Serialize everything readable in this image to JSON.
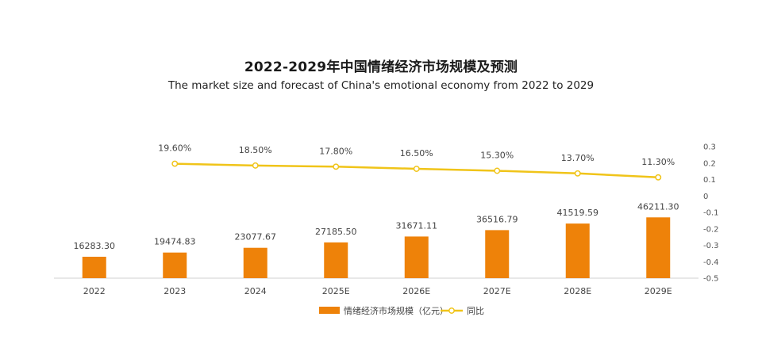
{
  "chart_data": {
    "type": "bar",
    "title": "2022-2029年中国情绪经济市场规模及预测",
    "subtitle": "The market size and forecast of China's emotional economy from 2022 to 2029",
    "categories": [
      "2022",
      "2023",
      "2024",
      "2025E",
      "2026E",
      "2027E",
      "2028E",
      "2029E"
    ],
    "series": [
      {
        "name": "情绪经济市场规模（亿元）",
        "type": "bar",
        "axis": "left",
        "values": [
          16283.3,
          19474.83,
          23077.67,
          27185.5,
          31671.11,
          36516.79,
          41519.59,
          46211.3
        ],
        "labels": [
          "16283.30",
          "19474.83",
          "23077.67",
          "27185.50",
          "31671.11",
          "36516.79",
          "41519.59",
          "46211.30"
        ]
      },
      {
        "name": "同比",
        "type": "line",
        "axis": "right",
        "values": [
          null,
          0.196,
          0.185,
          0.178,
          0.165,
          0.153,
          0.137,
          0.113
        ],
        "labels": [
          "",
          "19.60%",
          "18.50%",
          "17.80%",
          "16.50%",
          "15.30%",
          "13.70%",
          "11.30%"
        ]
      }
    ],
    "y_left": {
      "visible": false,
      "range": [
        0,
        100000
      ]
    },
    "y_right": {
      "range": [
        -0.5,
        0.3
      ],
      "ticks": [
        "0.3",
        "0.2",
        "0.1",
        "0",
        "-0.1",
        "-0.2",
        "-0.3",
        "-0.4",
        "-0.5"
      ],
      "tick_values": [
        0.3,
        0.2,
        0.1,
        0,
        -0.1,
        -0.2,
        -0.3,
        -0.4,
        -0.5
      ]
    },
    "grid": false,
    "legend_position": "bottom",
    "colors": {
      "bar": "#ee8209",
      "line": "#f0c419",
      "marker_fill": "#ffffff",
      "axis": "#d0d0d0"
    }
  }
}
